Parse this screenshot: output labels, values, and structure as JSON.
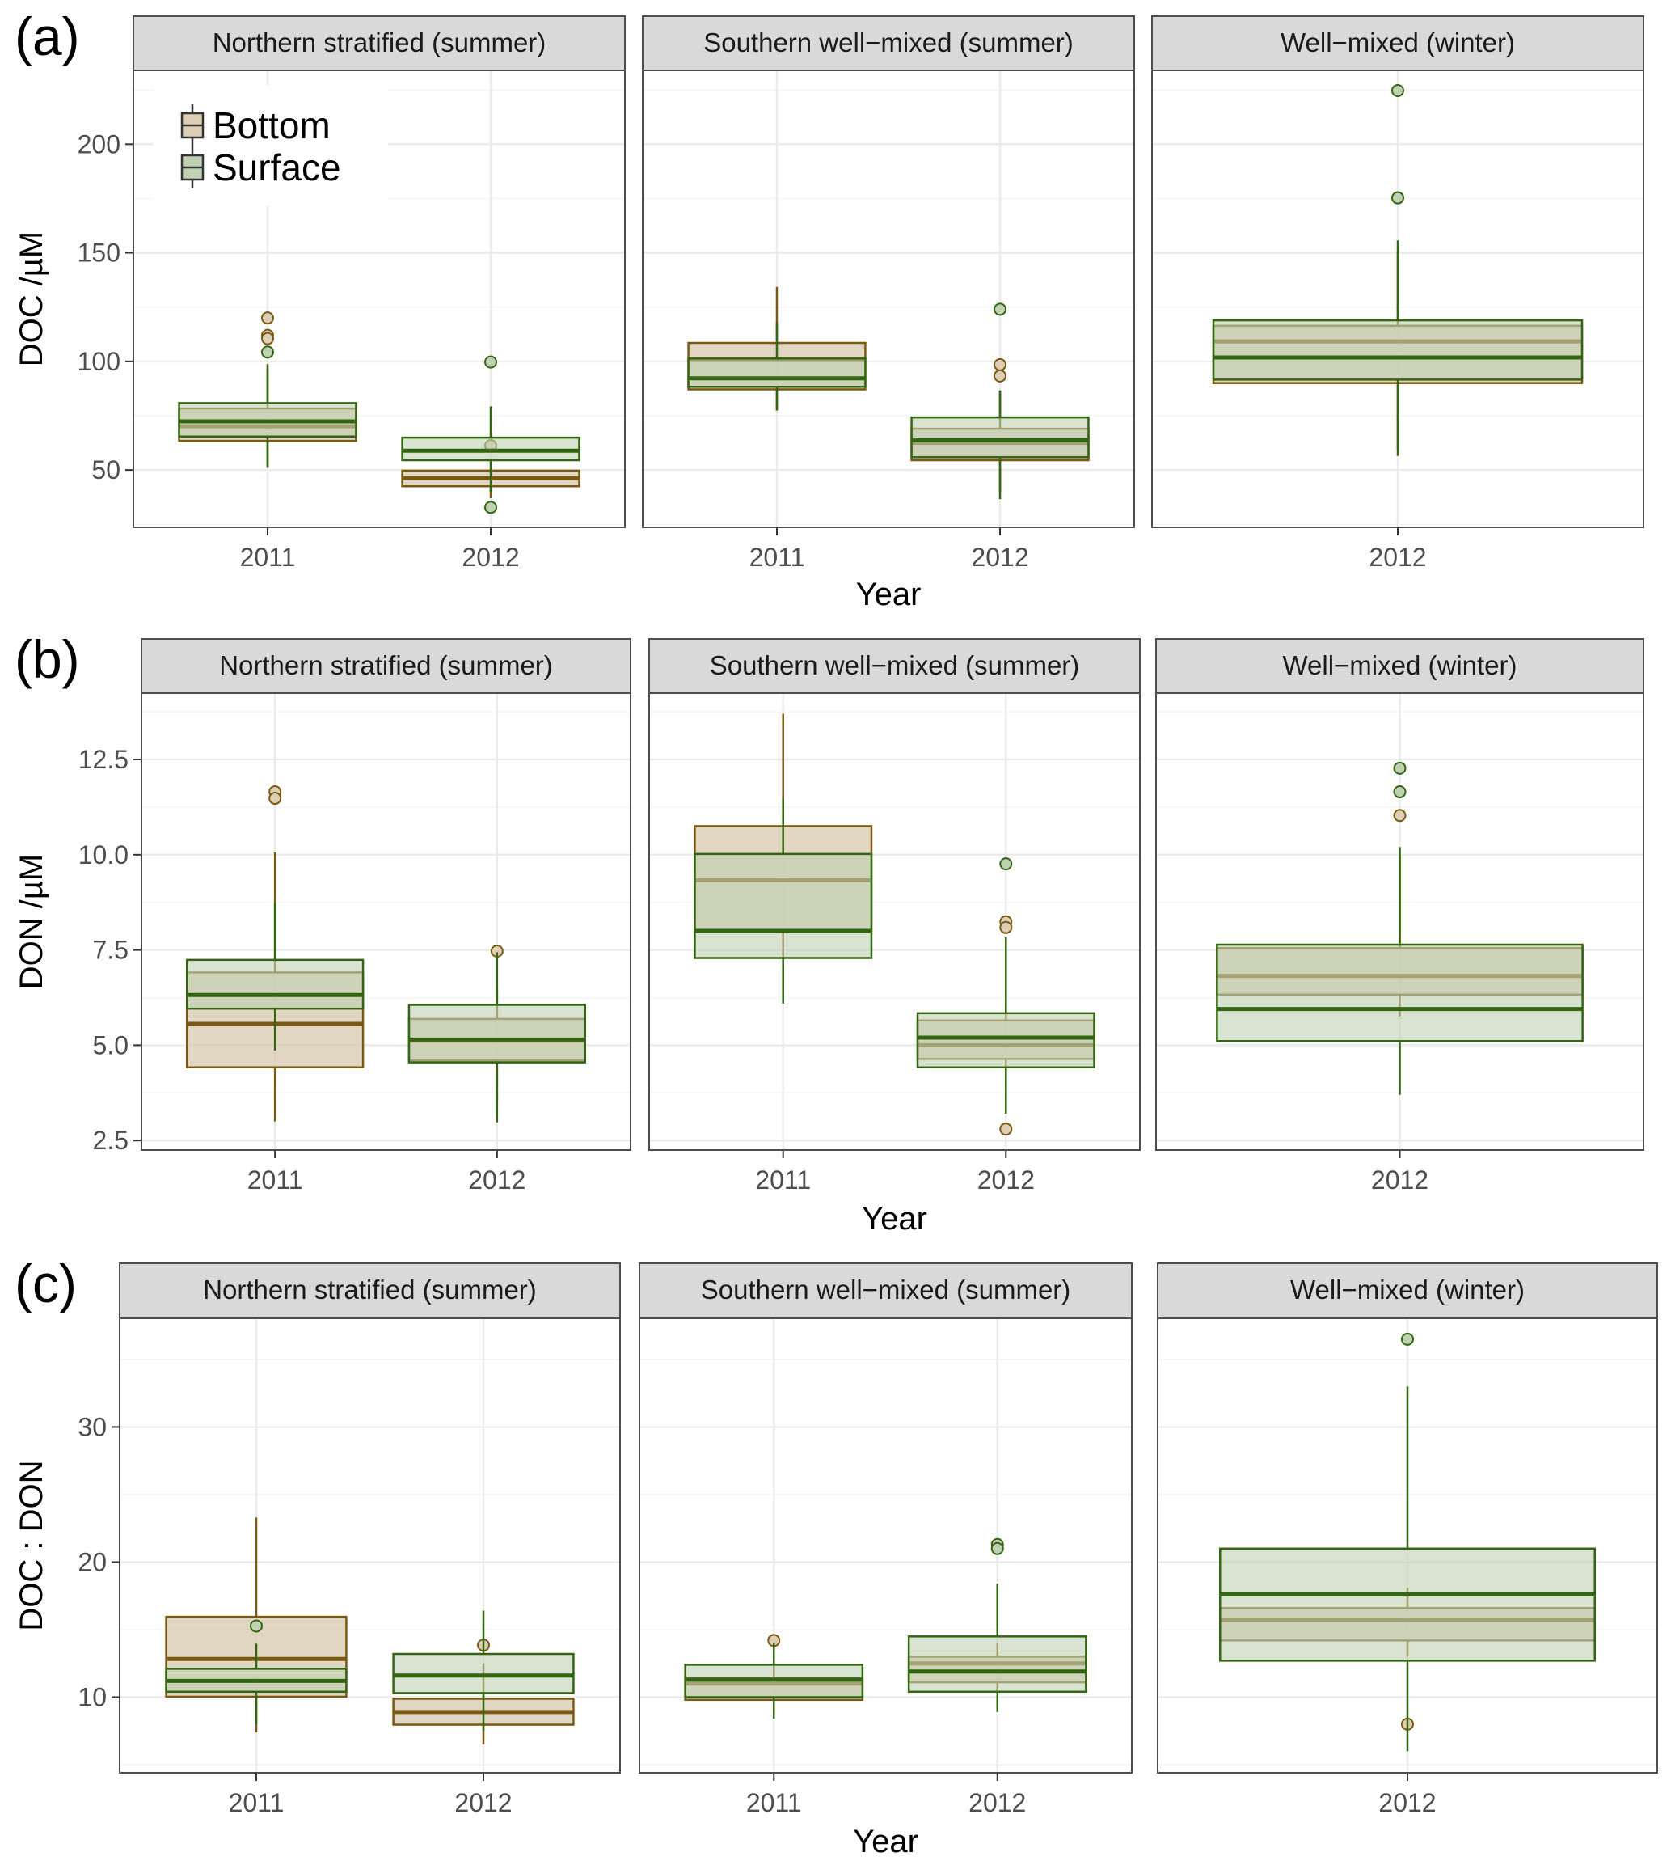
{
  "colors": {
    "bottom_fill": "#dccfb6",
    "bottom_line": "#7a5a12",
    "surface_fill": "#bfd0b3",
    "surface_line": "#336611",
    "overlap_fill": "#a8ad86",
    "strip_bg": "#d9d9d9",
    "grid": "#ebebeb",
    "panel_border": "#4d4d4d"
  },
  "legend": {
    "entries": [
      {
        "key": "Bottom",
        "label": "Bottom"
      },
      {
        "key": "Surface",
        "label": "Surface"
      }
    ],
    "placement": "top-left inside first panel"
  },
  "chart_data": [
    {
      "type": "boxplot",
      "row_label": "(a)",
      "ylabel": "DOC /µM",
      "xlabel": "Year",
      "ylim": [
        23.6,
        234
      ],
      "yticks": [
        50,
        100,
        150,
        200
      ],
      "ytick_labels": [
        "50",
        "100",
        "150",
        "200"
      ],
      "grid": true,
      "panels": [
        {
          "title": "Northern stratified (summer)",
          "categories": [
            "2011",
            "2012"
          ],
          "boxes": [
            {
              "x": "2011",
              "series": "Bottom",
              "q1": 63.4,
              "median": 70.1,
              "q3": 78.3,
              "whisker_low": 51,
              "whisker_high": 98.8,
              "outliers": [
                120,
                112,
                110.5
              ]
            },
            {
              "x": "2011",
              "series": "Surface",
              "q1": 65.4,
              "median": 72.4,
              "q3": 80.8,
              "whisker_low": 51,
              "whisker_high": 98,
              "outliers": [
                104.3
              ]
            },
            {
              "x": "2012",
              "series": "Bottom",
              "q1": 42.5,
              "median": 46.2,
              "q3": 49.7,
              "whisker_low": 37,
              "whisker_high": 49.7,
              "outliers": [
                61.2
              ]
            },
            {
              "x": "2012",
              "series": "Surface",
              "q1": 54.5,
              "median": 58.9,
              "q3": 64.9,
              "whisker_low": 40,
              "whisker_high": 79.3,
              "outliers": [
                99.7,
                32.8
              ]
            }
          ]
        },
        {
          "title": "Southern well−mixed (summer)",
          "categories": [
            "2011",
            "2012"
          ],
          "boxes": [
            {
              "x": "2011",
              "series": "Bottom",
              "q1": 87.1,
              "median": 101,
              "q3": 108.5,
              "whisker_low": 77.4,
              "whisker_high": 134.3,
              "outliers": []
            },
            {
              "x": "2011",
              "series": "Surface",
              "q1": 88.3,
              "median": 92.2,
              "q3": 101.3,
              "whisker_low": 77.4,
              "whisker_high": 118,
              "outliers": []
            },
            {
              "x": "2012",
              "series": "Bottom",
              "q1": 54.5,
              "median": 62.5,
              "q3": 69,
              "whisker_low": 40,
              "whisker_high": 86.6,
              "outliers": [
                98.5,
                93.3
              ]
            },
            {
              "x": "2012",
              "series": "Surface",
              "q1": 55.9,
              "median": 63.7,
              "q3": 74.2,
              "whisker_low": 36.6,
              "whisker_high": 86.6,
              "outliers": [
                124
              ]
            }
          ]
        },
        {
          "title": "Well−mixed (winter)",
          "categories": [
            "2012"
          ],
          "boxes": [
            {
              "x": "2012",
              "series": "Bottom",
              "q1": 90,
              "median": 109.2,
              "q3": 116.4,
              "whisker_low": 60,
              "whisker_high": 150,
              "outliers": [
                175.3
              ]
            },
            {
              "x": "2012",
              "series": "Surface",
              "q1": 91.6,
              "median": 101.8,
              "q3": 118.9,
              "whisker_low": 56.5,
              "whisker_high": 155.7,
              "outliers": [
                224.7,
                175.3
              ]
            }
          ]
        }
      ]
    },
    {
      "type": "boxplot",
      "row_label": "(b)",
      "ylabel": "DON /µM",
      "xlabel": "Year",
      "ylim": [
        2.25,
        14.24
      ],
      "yticks": [
        2.5,
        5.0,
        7.5,
        10.0,
        12.5
      ],
      "ytick_labels": [
        "2.5",
        "5.0",
        "7.5",
        "10.0",
        "12.5"
      ],
      "grid": true,
      "panels": [
        {
          "title": "Northern stratified (summer)",
          "categories": [
            "2011",
            "2012"
          ],
          "boxes": [
            {
              "x": "2011",
              "series": "Bottom",
              "q1": 4.42,
              "median": 5.56,
              "q3": 6.91,
              "whisker_low": 3.0,
              "whisker_high": 10.06,
              "outliers": [
                11.65,
                11.48
              ]
            },
            {
              "x": "2011",
              "series": "Surface",
              "q1": 5.96,
              "median": 6.32,
              "q3": 7.24,
              "whisker_low": 4.86,
              "whisker_high": 8.73,
              "outliers": []
            },
            {
              "x": "2012",
              "series": "Bottom",
              "q1": 4.6,
              "median": 5.12,
              "q3": 5.69,
              "whisker_low": 3.5,
              "whisker_high": 6.5,
              "outliers": [
                7.47
              ]
            },
            {
              "x": "2012",
              "series": "Surface",
              "q1": 4.55,
              "median": 5.15,
              "q3": 6.06,
              "whisker_low": 2.98,
              "whisker_high": 7.44,
              "outliers": []
            }
          ]
        },
        {
          "title": "Southern well−mixed (summer)",
          "categories": [
            "2011",
            "2012"
          ],
          "boxes": [
            {
              "x": "2011",
              "series": "Bottom",
              "q1": 7.99,
              "median": 9.33,
              "q3": 10.75,
              "whisker_low": 6.5,
              "whisker_high": 13.7,
              "outliers": []
            },
            {
              "x": "2011",
              "series": "Surface",
              "q1": 7.29,
              "median": 8.0,
              "q3": 10.02,
              "whisker_low": 6.09,
              "whisker_high": 11.46,
              "outliers": []
            },
            {
              "x": "2012",
              "series": "Bottom",
              "q1": 4.64,
              "median": 5.0,
              "q3": 5.65,
              "whisker_low": 3.5,
              "whisker_high": 6.5,
              "outliers": [
                8.24,
                8.09,
                2.8
              ]
            },
            {
              "x": "2012",
              "series": "Surface",
              "q1": 4.42,
              "median": 5.2,
              "q3": 5.84,
              "whisker_low": 3.2,
              "whisker_high": 7.83,
              "outliers": [
                9.76
              ]
            }
          ]
        },
        {
          "title": "Well−mixed (winter)",
          "categories": [
            "2012"
          ],
          "boxes": [
            {
              "x": "2012",
              "series": "Bottom",
              "q1": 6.33,
              "median": 6.82,
              "q3": 7.55,
              "whisker_low": 5.76,
              "whisker_high": 10.0,
              "outliers": [
                11.03
              ]
            },
            {
              "x": "2012",
              "series": "Surface",
              "q1": 5.11,
              "median": 5.95,
              "q3": 7.64,
              "whisker_low": 3.7,
              "whisker_high": 10.2,
              "outliers": [
                12.27,
                11.65
              ]
            }
          ]
        }
      ]
    },
    {
      "type": "boxplot",
      "row_label": "(c)",
      "ylabel": "DOC : DON",
      "xlabel": "Year",
      "ylim": [
        4.4,
        38.05
      ],
      "yticks": [
        10,
        20,
        30
      ],
      "ytick_labels": [
        "10",
        "20",
        "30"
      ],
      "grid": true,
      "panels": [
        {
          "title": "Northern stratified (summer)",
          "categories": [
            "2011",
            "2012"
          ],
          "boxes": [
            {
              "x": "2011",
              "series": "Bottom",
              "q1": 10.03,
              "median": 12.83,
              "q3": 15.95,
              "whisker_low": 7.4,
              "whisker_high": 23.3,
              "outliers": []
            },
            {
              "x": "2011",
              "series": "Surface",
              "q1": 10.4,
              "median": 11.2,
              "q3": 12.1,
              "whisker_low": 8.0,
              "whisker_high": 13.96,
              "outliers": [
                15.27
              ]
            },
            {
              "x": "2012",
              "series": "Bottom",
              "q1": 7.96,
              "median": 8.9,
              "q3": 9.88,
              "whisker_low": 6.5,
              "whisker_high": 12.5,
              "outliers": [
                13.85
              ]
            },
            {
              "x": "2012",
              "series": "Surface",
              "q1": 10.3,
              "median": 11.6,
              "q3": 13.2,
              "whisker_low": 7.5,
              "whisker_high": 16.4,
              "outliers": []
            }
          ]
        },
        {
          "title": "Southern well−mixed (summer)",
          "categories": [
            "2011",
            "2012"
          ],
          "boxes": [
            {
              "x": "2011",
              "series": "Bottom",
              "q1": 9.8,
              "median": 11.0,
              "q3": 11.4,
              "whisker_low": 9.0,
              "whisker_high": 13.5,
              "outliers": [
                14.2
              ]
            },
            {
              "x": "2011",
              "series": "Surface",
              "q1": 10.0,
              "median": 11.3,
              "q3": 12.4,
              "whisker_low": 8.4,
              "whisker_high": 14.0,
              "outliers": []
            },
            {
              "x": "2012",
              "series": "Bottom",
              "q1": 11.1,
              "median": 12.5,
              "q3": 13.0,
              "whisker_low": 10.0,
              "whisker_high": 14.0,
              "outliers": []
            },
            {
              "x": "2012",
              "series": "Surface",
              "q1": 10.4,
              "median": 11.9,
              "q3": 14.5,
              "whisker_low": 8.9,
              "whisker_high": 18.4,
              "outliers": [
                21.3,
                21.0
              ]
            }
          ]
        },
        {
          "title": "Well−mixed (winter)",
          "categories": [
            "2012"
          ],
          "boxes": [
            {
              "x": "2012",
              "series": "Bottom",
              "q1": 14.2,
              "median": 15.7,
              "q3": 16.6,
              "whisker_low": 13.0,
              "whisker_high": 18.1,
              "outliers": [
                8.0
              ]
            },
            {
              "x": "2012",
              "series": "Surface",
              "q1": 12.7,
              "median": 17.6,
              "q3": 21.0,
              "whisker_low": 6.0,
              "whisker_high": 33.0,
              "outliers": [
                36.5
              ]
            }
          ]
        }
      ]
    }
  ]
}
